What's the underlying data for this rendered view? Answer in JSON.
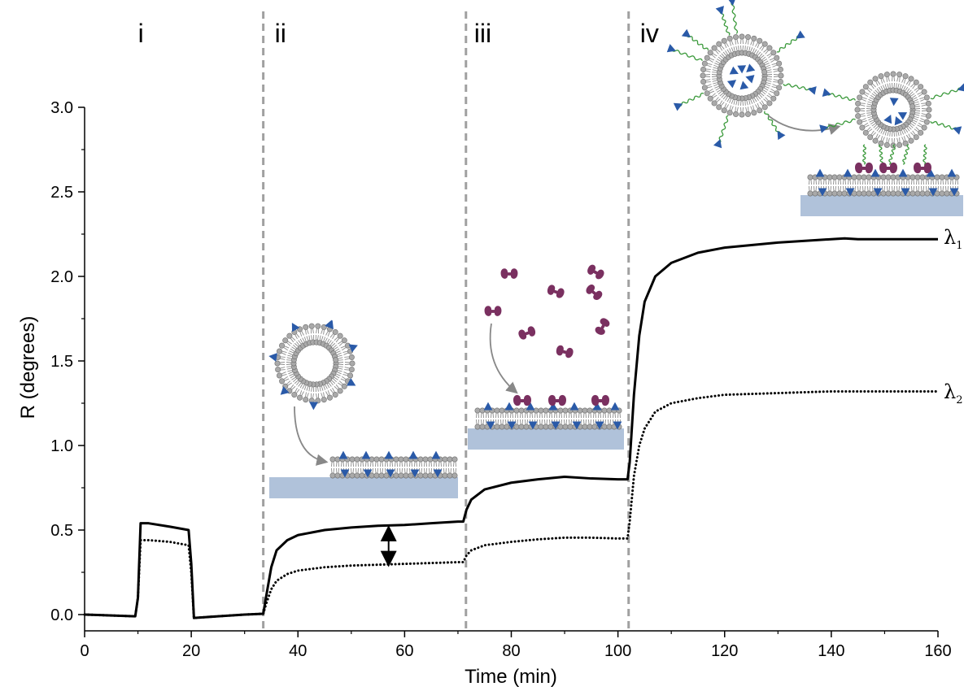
{
  "chart_data": {
    "type": "line",
    "xlabel": "Time (min)",
    "ylabel": "R (degrees)",
    "xlim": [
      0,
      160
    ],
    "ylim": [
      0,
      3.0
    ],
    "x_ticks": [
      "0",
      "20",
      "40",
      "60",
      "80",
      "100",
      "120",
      "140",
      "160"
    ],
    "y_ticks": [
      "0.0",
      "0.5",
      "1.0",
      "1.5",
      "2.0",
      "2.5",
      "3.0"
    ],
    "grid": false,
    "phase_boundaries": [
      33.5,
      71.5,
      102
    ],
    "phase_labels": [
      "i",
      "ii",
      "iii",
      "iv"
    ],
    "series": [
      {
        "name": "λ1",
        "style": "solid",
        "points": [
          [
            0,
            0
          ],
          [
            9.5,
            -0.01
          ],
          [
            10,
            0.1
          ],
          [
            10.5,
            0.54
          ],
          [
            12,
            0.54
          ],
          [
            16,
            0.52
          ],
          [
            19.5,
            0.5
          ],
          [
            20,
            0.3
          ],
          [
            20.5,
            -0.02
          ],
          [
            25,
            -0.01
          ],
          [
            30,
            0
          ],
          [
            33.5,
            0.005
          ],
          [
            34,
            0.1
          ],
          [
            35,
            0.28
          ],
          [
            36,
            0.38
          ],
          [
            38,
            0.44
          ],
          [
            40,
            0.47
          ],
          [
            45,
            0.5
          ],
          [
            50,
            0.515
          ],
          [
            55,
            0.525
          ],
          [
            60,
            0.53
          ],
          [
            65,
            0.54
          ],
          [
            70,
            0.55
          ],
          [
            71,
            0.55
          ],
          [
            71.6,
            0.62
          ],
          [
            72.5,
            0.68
          ],
          [
            75,
            0.74
          ],
          [
            80,
            0.78
          ],
          [
            85,
            0.8
          ],
          [
            90,
            0.815
          ],
          [
            95,
            0.805
          ],
          [
            100,
            0.8
          ],
          [
            101.8,
            0.8
          ],
          [
            102.2,
            0.9
          ],
          [
            103,
            1.3
          ],
          [
            104,
            1.65
          ],
          [
            105,
            1.85
          ],
          [
            107,
            2.0
          ],
          [
            110,
            2.08
          ],
          [
            115,
            2.14
          ],
          [
            120,
            2.17
          ],
          [
            130,
            2.2
          ],
          [
            140,
            2.22
          ],
          [
            142.5,
            2.225
          ],
          [
            145,
            2.22
          ],
          [
            160,
            2.22
          ]
        ]
      },
      {
        "name": "λ2",
        "style": "dotted",
        "points": [
          [
            0,
            0
          ],
          [
            9.5,
            -0.01
          ],
          [
            10,
            0.1
          ],
          [
            10.5,
            0.44
          ],
          [
            12,
            0.44
          ],
          [
            16,
            0.43
          ],
          [
            19.5,
            0.41
          ],
          [
            20,
            0.25
          ],
          [
            20.5,
            -0.02
          ],
          [
            25,
            -0.01
          ],
          [
            30,
            0
          ],
          [
            33.5,
            0.005
          ],
          [
            34,
            0.06
          ],
          [
            35,
            0.15
          ],
          [
            36,
            0.2
          ],
          [
            38,
            0.24
          ],
          [
            40,
            0.26
          ],
          [
            45,
            0.28
          ],
          [
            50,
            0.29
          ],
          [
            55,
            0.295
          ],
          [
            60,
            0.3
          ],
          [
            65,
            0.305
          ],
          [
            70,
            0.31
          ],
          [
            71,
            0.31
          ],
          [
            71.6,
            0.35
          ],
          [
            72.5,
            0.38
          ],
          [
            75,
            0.41
          ],
          [
            80,
            0.43
          ],
          [
            85,
            0.445
          ],
          [
            90,
            0.455
          ],
          [
            95,
            0.455
          ],
          [
            100,
            0.45
          ],
          [
            101.8,
            0.45
          ],
          [
            102.2,
            0.55
          ],
          [
            103,
            0.82
          ],
          [
            104,
            1.0
          ],
          [
            105,
            1.1
          ],
          [
            107,
            1.2
          ],
          [
            110,
            1.25
          ],
          [
            115,
            1.28
          ],
          [
            120,
            1.3
          ],
          [
            130,
            1.31
          ],
          [
            140,
            1.32
          ],
          [
            145,
            1.32
          ],
          [
            160,
            1.32
          ]
        ]
      }
    ],
    "annotations": [
      {
        "type": "double-arrow",
        "x": 57,
        "y_from": 0.3,
        "y_to": 0.51
      }
    ]
  }
}
